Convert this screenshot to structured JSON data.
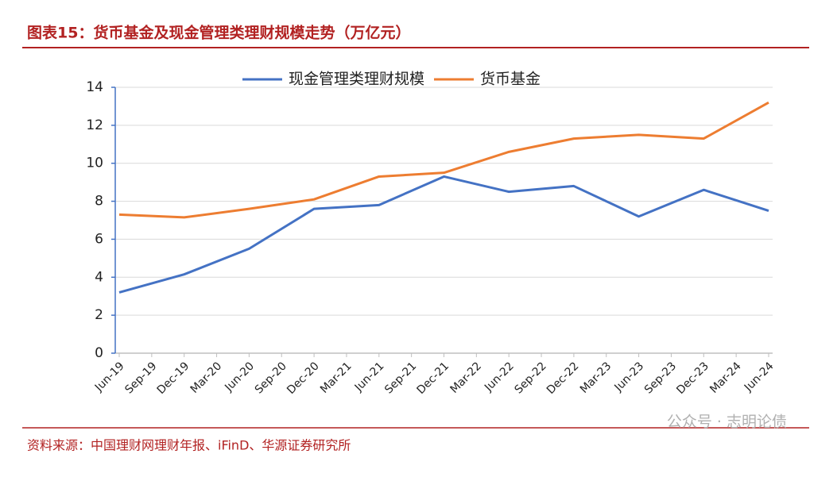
{
  "chart_data": {
    "type": "line",
    "title": "图表15：货币基金及现金管理类理财规模走势（万亿元）",
    "source": "资料来源：中国理财网理财年报、iFinD、华源证券研究所",
    "watermark": "公众号 · 志明论债",
    "xticks": [
      "Jun-19",
      "Sep-19",
      "Dec-19",
      "Mar-20",
      "Jun-20",
      "Sep-20",
      "Dec-20",
      "Mar-21",
      "Jun-21",
      "Sep-21",
      "Dec-21",
      "Mar-22",
      "Jun-22",
      "Sep-22",
      "Dec-22",
      "Mar-23",
      "Jun-23",
      "Sep-23",
      "Dec-23",
      "Mar-24",
      "Jun-24"
    ],
    "x": [
      "Jun-19",
      "Dec-19",
      "Jun-20",
      "Dec-20",
      "Jun-21",
      "Dec-21",
      "Jun-22",
      "Dec-22",
      "Jun-23",
      "Dec-23",
      "Jun-24"
    ],
    "series": [
      {
        "name": "现金管理类理财规模",
        "color": "#4472c4",
        "values": [
          3.2,
          4.15,
          5.5,
          7.6,
          7.8,
          9.3,
          8.5,
          8.8,
          7.2,
          8.6,
          7.5
        ]
      },
      {
        "name": "货币基金",
        "color": "#ed7d31",
        "values": [
          7.3,
          7.15,
          7.6,
          8.1,
          9.3,
          9.5,
          10.6,
          11.3,
          11.5,
          11.3,
          13.2
        ]
      }
    ],
    "ylim": [
      0,
      14
    ],
    "yticks": [
      0,
      2,
      4,
      6,
      8,
      10,
      12,
      14
    ],
    "grid": true,
    "legend": "top"
  }
}
